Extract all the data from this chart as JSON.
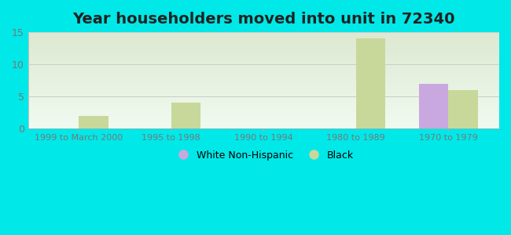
{
  "title": "Year householders moved into unit in 72340",
  "categories": [
    "1999 to March 2000",
    "1995 to 1998",
    "1990 to 1994",
    "1980 to 1989",
    "1970 to 1979"
  ],
  "white_values": [
    0,
    0,
    0,
    0,
    7
  ],
  "black_values": [
    2,
    4,
    0,
    14,
    6
  ],
  "white_color": "#c9a8e0",
  "black_color": "#c8d89a",
  "ylim": [
    0,
    15
  ],
  "yticks": [
    0,
    5,
    10,
    15
  ],
  "background_color": "#00e8e8",
  "plot_bg_color_top": "#dce8d0",
  "plot_bg_color_bottom": "#f0faf0",
  "title_fontsize": 14,
  "legend_white_label": "White Non-Hispanic",
  "legend_black_label": "Black",
  "bar_width": 0.32,
  "tick_label_fontsize": 8,
  "tick_label_color": "#777777"
}
